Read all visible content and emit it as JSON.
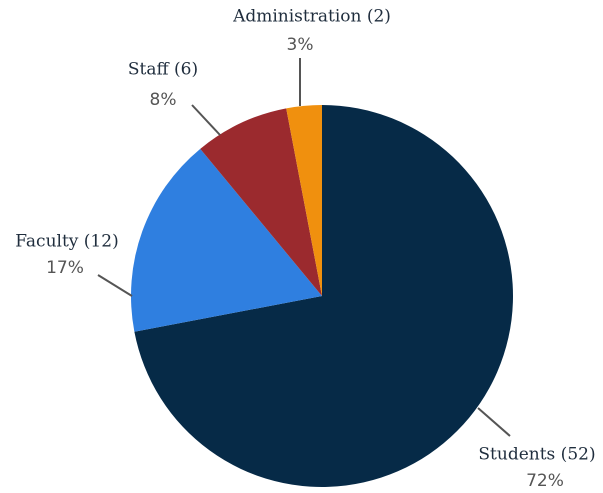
{
  "chart_data": {
    "type": "pie",
    "categories": [
      "Students (52)",
      "Faculty (12)",
      "Staff (6)",
      "Administration (2)"
    ],
    "values": [
      72,
      17,
      8,
      3
    ],
    "value_labels": [
      "72%",
      "17%",
      "8%",
      "3%"
    ],
    "colors": [
      "#062a47",
      "#2f7fe0",
      "#9b2a2e",
      "#f0900e"
    ]
  }
}
